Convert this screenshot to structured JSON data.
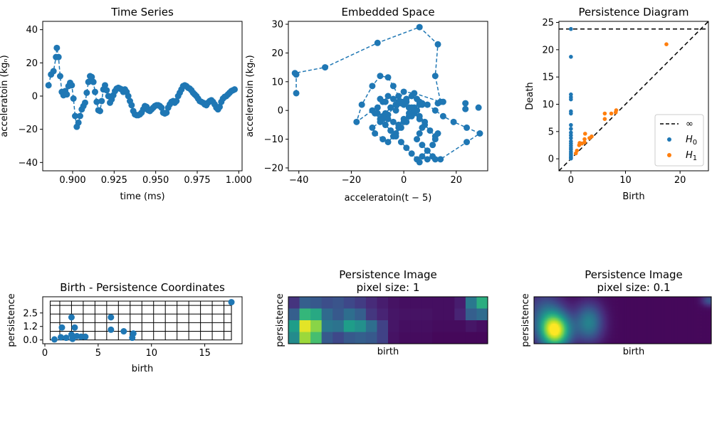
{
  "colors": {
    "blue": "#1f77b4",
    "orange": "#ff7f0e",
    "viridis": [
      "#440154",
      "#482878",
      "#3e4989",
      "#31688e",
      "#26828e",
      "#1f9e89",
      "#35b779",
      "#6ece58",
      "#b5de2b",
      "#fde725"
    ]
  },
  "chart_data": [
    {
      "id": "time_series",
      "type": "line",
      "title": "Time Series",
      "xlabel": "time (ms)",
      "ylabel": "acceleratoin (kgₙ)",
      "xlim": [
        0.882,
        1.002
      ],
      "ylim": [
        -45,
        45
      ],
      "xticks": [
        0.9,
        0.925,
        0.95,
        0.975,
        1.0
      ],
      "xtick_labels": [
        "0.900",
        "0.925",
        "0.950",
        "0.975",
        "1.000"
      ],
      "yticks": [
        -40,
        -20,
        0,
        20,
        40
      ],
      "ytick_labels": [
        "−40",
        "−20",
        "0",
        "20",
        "40"
      ],
      "marker": "circle",
      "line_style": "dashed",
      "x": [
        0.8855,
        0.887,
        0.8885,
        0.89,
        0.8905,
        0.8915,
        0.8925,
        0.8935,
        0.8945,
        0.8955,
        0.8965,
        0.8975,
        0.8985,
        0.8995,
        0.9005,
        0.9015,
        0.9025,
        0.9035,
        0.9045,
        0.9055,
        0.9065,
        0.9075,
        0.9085,
        0.9095,
        0.9105,
        0.9115,
        0.9125,
        0.9135,
        0.9145,
        0.9155,
        0.9165,
        0.9175,
        0.9185,
        0.9195,
        0.9205,
        0.9215,
        0.9225,
        0.9235,
        0.9245,
        0.9255,
        0.9265,
        0.9275,
        0.9285,
        0.9295,
        0.9305,
        0.9315,
        0.9325,
        0.9335,
        0.9345,
        0.9355,
        0.9365,
        0.9375,
        0.9385,
        0.9395,
        0.9405,
        0.9415,
        0.9425,
        0.9435,
        0.9445,
        0.9455,
        0.9465,
        0.9475,
        0.9485,
        0.9495,
        0.9505,
        0.9515,
        0.9525,
        0.9535,
        0.9545,
        0.9555,
        0.9565,
        0.9575,
        0.9585,
        0.9595,
        0.9605,
        0.9615,
        0.9625,
        0.9635,
        0.9645,
        0.9655,
        0.9665,
        0.9675,
        0.9685,
        0.9695,
        0.9705,
        0.9715,
        0.9725,
        0.9735,
        0.9745,
        0.9755,
        0.9765,
        0.9775,
        0.9785,
        0.9795,
        0.9805,
        0.9815,
        0.9825,
        0.9835,
        0.9845,
        0.9855,
        0.9865,
        0.9875,
        0.9885,
        0.9895,
        0.9905,
        0.9915,
        0.9925,
        0.9935,
        0.9945,
        0.9955,
        0.9965,
        0.9975
      ],
      "y": [
        6.5,
        13,
        15,
        23.5,
        29,
        23.5,
        12,
        2.5,
        0.5,
        3,
        1,
        6,
        8,
        6.5,
        -1.5,
        -12,
        -18.5,
        -16,
        -12,
        -8,
        -6,
        -4,
        2,
        8.5,
        12,
        11.5,
        8.5,
        2.5,
        -3.5,
        -8.5,
        -9,
        -3,
        4,
        6.5,
        3.5,
        0,
        -4,
        -2,
        0.5,
        3,
        4.5,
        5,
        4.5,
        4,
        2.5,
        4,
        2.5,
        0,
        -3,
        -5.5,
        -9,
        -11,
        -11.5,
        -11.5,
        -11,
        -10,
        -8,
        -6,
        -6.5,
        -8.5,
        -9,
        -8,
        -7,
        -6,
        -5.5,
        -5.5,
        -6,
        -7,
        -10,
        -10.5,
        -10,
        -7,
        -5,
        -3.5,
        -3,
        -4,
        -3,
        0,
        2,
        4,
        6,
        6.5,
        6,
        5,
        4.5,
        3.5,
        2,
        1,
        0,
        -1.5,
        -3,
        -3.5,
        -4,
        -5,
        -5.5,
        -4,
        -3,
        -2.5,
        -3.5,
        -5,
        -7,
        -8,
        -6.5,
        -3.5,
        -1.5,
        -0.5,
        0,
        1,
        2,
        3,
        3.5,
        4
      ]
    },
    {
      "id": "embedded_space",
      "type": "line",
      "title": "Embedded Space",
      "xlabel": "acceleratoin(t − 5)",
      "ylabel": "acceleratoin (kgₙ)",
      "xlim": [
        -44,
        32
      ],
      "ylim": [
        -21,
        31
      ],
      "xticks": [
        -40,
        -20,
        0,
        20
      ],
      "xtick_labels": [
        "−40",
        "−20",
        "0",
        "20"
      ],
      "yticks": [
        -20,
        -10,
        0,
        10,
        20,
        30
      ],
      "ytick_labels": [
        "−20",
        "−10",
        "0",
        "10",
        "20",
        "30"
      ],
      "marker": "circle",
      "line_style": "dashed",
      "x": [
        -41,
        -41,
        -41.5,
        -30,
        -10,
        6,
        13,
        12,
        14,
        4,
        0,
        -3,
        -6,
        -9,
        -12,
        -11,
        -8,
        -6,
        -4,
        -2,
        0,
        2,
        4,
        6,
        5,
        3,
        1,
        -1,
        -3,
        -5,
        -7,
        -8,
        -7,
        -5,
        -3,
        -1,
        1,
        3,
        5,
        7,
        6,
        4,
        2,
        0,
        -2,
        -4,
        -6,
        -8,
        -10,
        -12,
        -18,
        -16,
        -12,
        -9,
        -6,
        -4,
        -2,
        0,
        2,
        4,
        6,
        8,
        10,
        12,
        13,
        12,
        11,
        9,
        7,
        5,
        3,
        1,
        -1,
        -3,
        -5,
        -7,
        -9,
        -11,
        -10,
        -8,
        -6,
        -4,
        -2,
        0,
        2,
        4,
        6,
        8,
        7,
        6,
        5,
        7,
        9,
        11,
        12,
        14,
        24,
        29,
        24,
        19,
        15,
        12,
        9,
        7,
        5,
        3,
        1,
        -1,
        -3,
        -5,
        -7,
        -9
      ],
      "y": [
        6,
        12.5,
        13,
        15,
        23.5,
        29,
        23,
        12,
        3,
        6,
        6.5,
        2,
        -1.5,
        -4,
        -6,
        -8,
        -10,
        -11,
        -9,
        -6,
        -4,
        -2,
        0,
        2,
        4,
        5,
        4,
        3,
        2,
        1,
        -1,
        -3,
        -5,
        -7,
        -8,
        -6,
        -4,
        -2,
        0,
        2,
        3,
        1,
        -1,
        -3,
        -5,
        -4,
        -3,
        -2,
        -1,
        0,
        -4,
        2,
        8.5,
        12,
        11.5,
        8.5,
        5,
        3,
        1,
        -1,
        -3,
        -5,
        -7,
        -9,
        -8,
        -10,
        -12,
        -14,
        -16,
        -17,
        -15,
        -13,
        -11,
        -9,
        -7,
        -5,
        -3,
        -1,
        1,
        3,
        5,
        4,
        3,
        2,
        1,
        0,
        -2,
        -4,
        -6,
        -8,
        -10,
        -12,
        -14,
        -16,
        -17,
        -17,
        -11,
        -8,
        -6,
        -4,
        -2,
        0,
        2,
        2.5,
        0,
        1,
        3,
        2.5,
        0,
        1,
        3,
        4
      ],
      "extra_points": [
        [
          6,
          -18
        ],
        [
          9,
          -17
        ],
        [
          13,
          2.5
        ],
        [
          15,
          3
        ],
        [
          23.5,
          2.5
        ],
        [
          23.5,
          0.5
        ],
        [
          28.5,
          1
        ]
      ]
    },
    {
      "id": "persistence_diagram",
      "type": "scatter",
      "title": "Persistence Diagram",
      "xlabel": "Birth",
      "ylabel": "Death",
      "xlim": [
        -2.2,
        25.2
      ],
      "ylim": [
        -2.2,
        25.2
      ],
      "xticks": [
        0,
        10,
        20
      ],
      "xtick_labels": [
        "0",
        "10",
        "20"
      ],
      "yticks": [
        0,
        5,
        10,
        15,
        20,
        25
      ],
      "ytick_labels": [
        "0",
        "5",
        "10",
        "15",
        "20",
        "25"
      ],
      "infinity_level": 23.8,
      "legend": {
        "placement": "lower right",
        "entries": [
          {
            "label": "∞",
            "style": "dashed-line",
            "color": "#000000"
          },
          {
            "label": "H",
            "sub": "0",
            "style": "dot",
            "color": "#1f77b4"
          },
          {
            "label": "H",
            "sub": "1",
            "style": "dot",
            "color": "#ff7f0e"
          }
        ]
      },
      "series": [
        {
          "name": "H0",
          "points": [
            [
              0,
              23.8
            ],
            [
              0,
              18.7
            ],
            [
              0,
              11.8
            ],
            [
              0,
              11.3
            ],
            [
              0,
              10.9
            ],
            [
              0,
              8.7
            ],
            [
              0,
              8.3
            ],
            [
              0,
              6.2
            ],
            [
              0,
              5.5
            ],
            [
              0,
              4.8
            ],
            [
              0,
              4.3
            ],
            [
              0,
              3.8
            ],
            [
              0,
              3.2
            ],
            [
              0,
              2.8
            ],
            [
              0,
              2.4
            ],
            [
              0,
              2.0
            ],
            [
              0,
              1.7
            ],
            [
              0,
              1.3
            ],
            [
              0,
              1.0
            ],
            [
              0,
              0.7
            ],
            [
              0,
              0.4
            ],
            [
              0,
              0.2
            ],
            [
              0,
              0.05
            ]
          ]
        },
        {
          "name": "H1",
          "points": [
            [
              17.5,
              21.0
            ],
            [
              8.3,
              8.9
            ],
            [
              8.2,
              8.5
            ],
            [
              7.4,
              8.3
            ],
            [
              6.2,
              8.3
            ],
            [
              6.2,
              7.3
            ],
            [
              3.8,
              4.1
            ],
            [
              3.4,
              3.8
            ],
            [
              2.6,
              4.6
            ],
            [
              2.5,
              3.6
            ],
            [
              2.5,
              3.0
            ],
            [
              2.0,
              2.8
            ],
            [
              1.6,
              2.9
            ],
            [
              1.5,
              2.5
            ],
            [
              1.1,
              1.5
            ],
            [
              0.9,
              1.0
            ]
          ]
        }
      ]
    },
    {
      "id": "birth_persistence",
      "type": "scatter",
      "title": "Birth - Persistence Coordinates",
      "xlabel": "birth",
      "ylabel": "persistence",
      "xlim": [
        -0.2,
        18.5
      ],
      "ylim": [
        -0.35,
        4.0
      ],
      "xticks": [
        0,
        5,
        10,
        15
      ],
      "xtick_labels": [
        "0",
        "5",
        "10",
        "15"
      ],
      "yticks": [
        0,
        1.25,
        2.5
      ],
      "ytick_labels": [
        "0.0",
        "1.2",
        "2.5"
      ],
      "grid_x": [
        1.4,
        2.5,
        3.6,
        4.7,
        5.8,
        6.9,
        8.0,
        9.1,
        10.2,
        11.3,
        12.4,
        13.5,
        14.6,
        15.7,
        16.8,
        17.5
      ],
      "grid_y": [
        0.8,
        1.6,
        2.4,
        3.2
      ],
      "points": [
        [
          0.9,
          0.05
        ],
        [
          1.5,
          0.25
        ],
        [
          1.6,
          1.15
        ],
        [
          2.0,
          0.2
        ],
        [
          2.5,
          0.5
        ],
        [
          2.5,
          2.1
        ],
        [
          2.6,
          0.1
        ],
        [
          2.8,
          1.15
        ],
        [
          3.0,
          0.35
        ],
        [
          3.4,
          0.3
        ],
        [
          3.8,
          0.3
        ],
        [
          6.2,
          0.95
        ],
        [
          6.2,
          2.1
        ],
        [
          7.4,
          0.8
        ],
        [
          8.2,
          0.2
        ],
        [
          8.3,
          0.6
        ],
        [
          17.5,
          3.5
        ]
      ]
    },
    {
      "id": "pi_1",
      "type": "heatmap",
      "title": "Persistence Image",
      "subtitle": "pixel size: 1",
      "xlabel": "birth",
      "ylabel": "persistence",
      "values": [
        [
          0.15,
          0.3,
          0.28,
          0.24,
          0.26,
          0.22,
          0.18,
          0.12,
          0.08,
          0.05,
          0.04,
          0.04,
          0.04,
          0.04,
          0.04,
          0.08,
          0.4,
          0.62
        ],
        [
          0.3,
          0.66,
          0.6,
          0.34,
          0.28,
          0.36,
          0.3,
          0.16,
          0.1,
          0.06,
          0.05,
          0.05,
          0.05,
          0.04,
          0.04,
          0.1,
          0.3,
          0.35
        ],
        [
          0.55,
          0.96,
          0.82,
          0.4,
          0.38,
          0.55,
          0.5,
          0.36,
          0.2,
          0.06,
          0.04,
          0.04,
          0.04,
          0.03,
          0.03,
          0.03,
          0.06,
          0.04
        ],
        [
          0.48,
          0.85,
          0.7,
          0.28,
          0.22,
          0.28,
          0.3,
          0.28,
          0.2,
          0.05,
          0.03,
          0.03,
          0.03,
          0.02,
          0.02,
          0.02,
          0.02,
          0.02
        ]
      ]
    },
    {
      "id": "pi_01",
      "type": "heatmap",
      "title": "Persistence Image",
      "subtitle": "pixel size: 0.1",
      "xlabel": "birth",
      "ylabel": "persistence",
      "blobs": [
        {
          "cx": 0.12,
          "cy": 0.72,
          "sx": 0.06,
          "sy": 0.26,
          "a": 0.95
        },
        {
          "cx": 0.31,
          "cy": 0.55,
          "sx": 0.055,
          "sy": 0.28,
          "a": 0.42
        },
        {
          "cx": 0.06,
          "cy": 0.35,
          "sx": 0.07,
          "sy": 0.35,
          "a": 0.25
        },
        {
          "cx": 0.99,
          "cy": 0.08,
          "sx": 0.03,
          "sy": 0.08,
          "a": 0.25
        }
      ]
    }
  ]
}
